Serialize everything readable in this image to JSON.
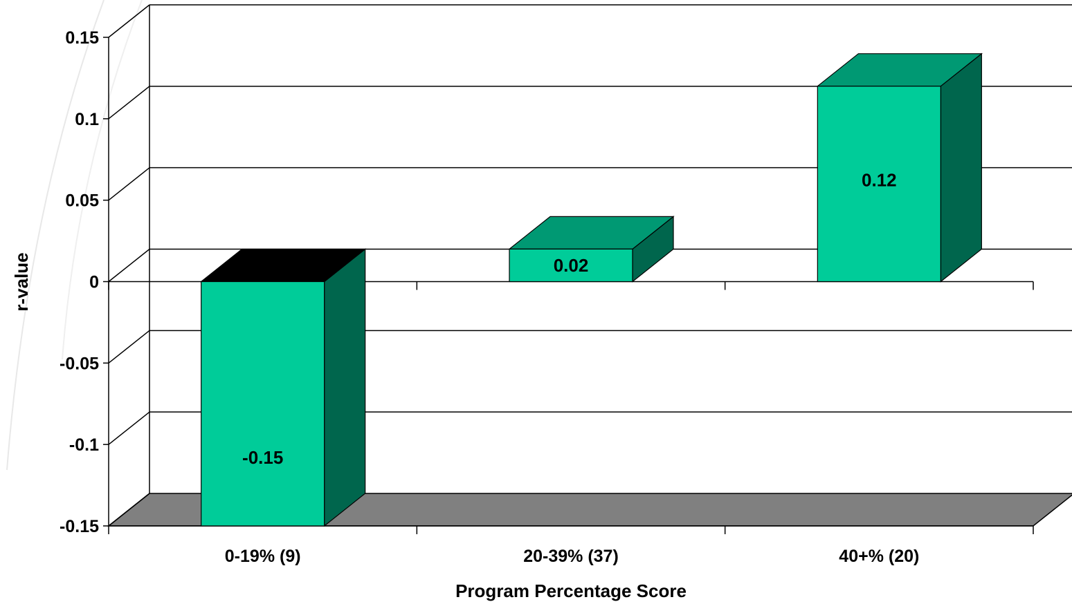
{
  "chart_data": {
    "type": "bar",
    "style": "3d-column",
    "title": "",
    "xlabel": "Program Percentage Score",
    "ylabel": "r-value",
    "categories": [
      "0-19% (9)",
      "20-39% (37)",
      "40+% (20)"
    ],
    "series": [
      {
        "values": [
          -0.15,
          0.02,
          0.12
        ]
      }
    ],
    "data_labels": [
      "-0.15",
      "0.02",
      "0.12"
    ],
    "ylim": [
      -0.15,
      0.15
    ],
    "yticks": [
      0.15,
      0.1,
      0.05,
      0,
      -0.05,
      -0.1,
      -0.15
    ],
    "ytick_labels": [
      "0.15",
      "0.1",
      "0.05",
      "0",
      "-0.05",
      "-0.1",
      "-0.15"
    ],
    "grid": true,
    "legend": "none",
    "colors": {
      "bar_front": "#00cc99",
      "bar_top": "#009973",
      "bar_side": "#00664d",
      "negative_top": "#000000",
      "floor": "#808080",
      "wall": "#ffffff",
      "grid": "#000000"
    }
  }
}
